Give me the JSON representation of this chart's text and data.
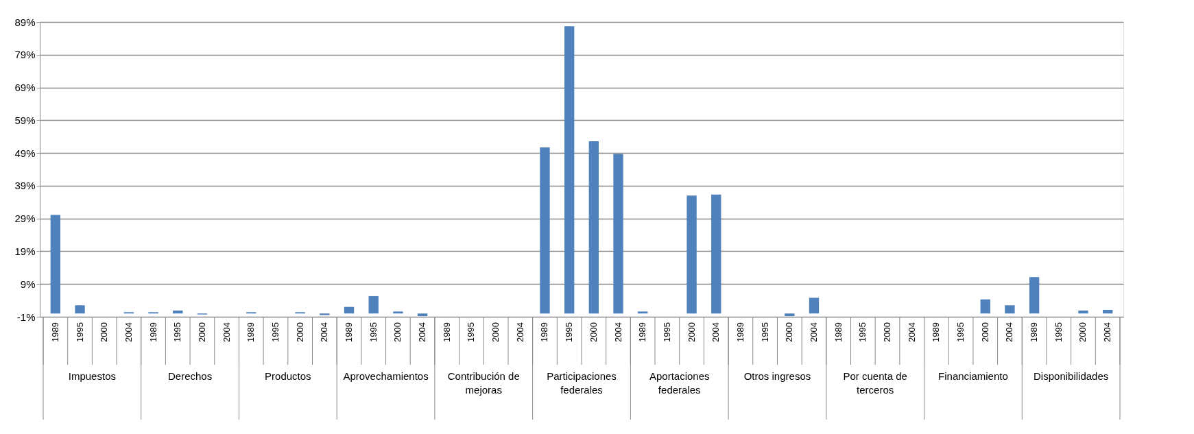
{
  "chart_data": {
    "type": "bar",
    "categories": [
      "1989",
      "1995",
      "2000",
      "2004",
      "1989",
      "1995",
      "2000",
      "2004",
      "1989",
      "1995",
      "2000",
      "2004",
      "1989",
      "1995",
      "2000",
      "2004",
      "1989",
      "1995",
      "2000",
      "2004",
      "1989",
      "1995",
      "2000",
      "2004",
      "1989",
      "1995",
      "2000",
      "2004",
      "1989",
      "1995",
      "2000",
      "2004",
      "1989",
      "1995",
      "2000",
      "2004",
      "1989",
      "1995",
      "2000",
      "2004",
      "1989",
      "1995",
      "2000",
      "2004"
    ],
    "values": [
      30.1,
      2.5,
      0.0,
      0.4,
      0.4,
      0.9,
      -0.3,
      0.0,
      0.4,
      0.0,
      0.4,
      -0.5,
      2.0,
      5.3,
      0.6,
      -0.8,
      null,
      null,
      null,
      null,
      50.7,
      87.7,
      52.6,
      48.7,
      0.6,
      null,
      36.0,
      36.3,
      null,
      null,
      -0.8,
      4.8,
      null,
      null,
      null,
      0.0,
      null,
      null,
      4.3,
      2.5,
      11.1,
      null,
      0.9,
      1.1
    ],
    "color": "#4f81bd",
    "annotations": [
      "Impuestos",
      "Derechos",
      "Productos",
      "Aprovechamientos",
      "Contribución de mejoras",
      "Participaciones federales",
      "Aportaciones federales",
      "Otros ingresos",
      "Por cuenta de terceros",
      "Financiamiento",
      "Disponibilidades"
    ],
    "ylim": [
      -1,
      89
    ],
    "yticks": [
      {
        "value": -1,
        "label": "-1%"
      },
      {
        "value": 9,
        "label": "9%"
      },
      {
        "value": 19,
        "label": "19%"
      },
      {
        "value": 29,
        "label": "29%"
      },
      {
        "value": 39,
        "label": "39%"
      },
      {
        "value": 49,
        "label": "49%"
      },
      {
        "value": 59,
        "label": "59%"
      },
      {
        "value": 69,
        "label": "69%"
      },
      {
        "value": 79,
        "label": "79%"
      },
      {
        "value": 89,
        "label": "89%"
      }
    ],
    "grid": "y"
  }
}
